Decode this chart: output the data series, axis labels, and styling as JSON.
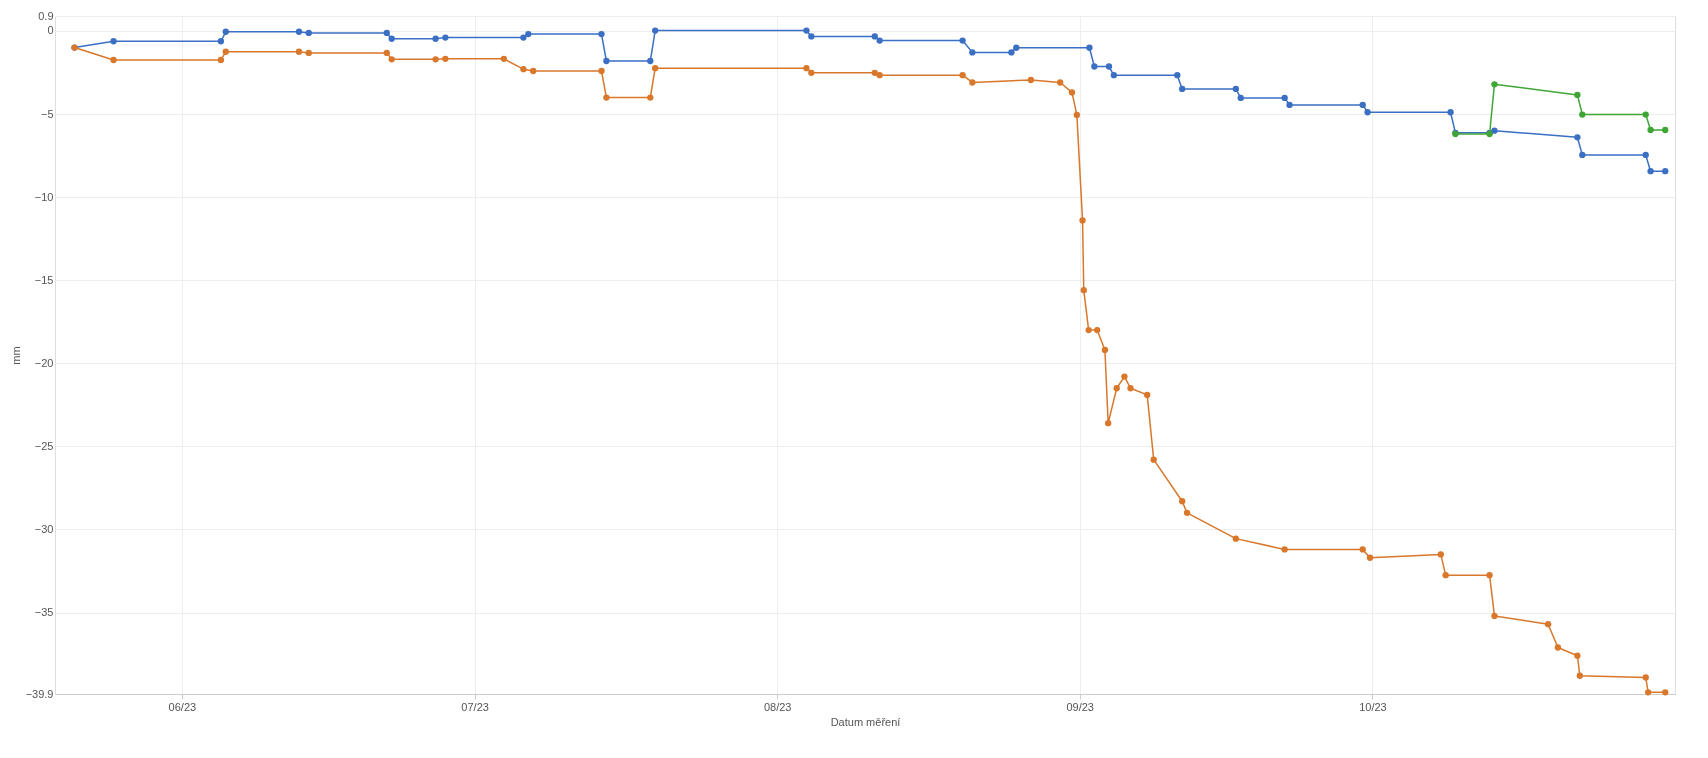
{
  "chart_data": {
    "type": "line",
    "xlabel": "Datum měření",
    "ylabel": "mm",
    "xlim": [
      "2023-05-19",
      "2023-11-01"
    ],
    "xticks": [
      {
        "value": "2023-06-01",
        "label": "06/23"
      },
      {
        "value": "2023-07-01",
        "label": "07/23"
      },
      {
        "value": "2023-08-01",
        "label": "08/23"
      },
      {
        "value": "2023-09-01",
        "label": "09/23"
      },
      {
        "value": "2023-10-01",
        "label": "10/23"
      }
    ],
    "ylim": [
      -39.9,
      0.9
    ],
    "yticks": [
      0.9,
      0,
      -5,
      -10,
      -15,
      -20,
      -25,
      -30,
      -35,
      -39.9
    ],
    "grid": true,
    "marker": "circle",
    "line_style": "solid",
    "series": [
      {
        "color": "#3a6fc4",
        "x": [
          "2023-05-21",
          "2023-05-25",
          "2023-06-05",
          "2023-06-05T12:00",
          "2023-06-13",
          "2023-06-14",
          "2023-06-22",
          "2023-06-22T12:00",
          "2023-06-27",
          "2023-06-28",
          "2023-07-06",
          "2023-07-06T12:00",
          "2023-07-14",
          "2023-07-14T12:00",
          "2023-07-19",
          "2023-07-19T12:00",
          "2023-08-04",
          "2023-08-04T12:00",
          "2023-08-11",
          "2023-08-11T12:00",
          "2023-08-20",
          "2023-08-21",
          "2023-08-25",
          "2023-08-25T12:00",
          "2023-09-02",
          "2023-09-02T12:00",
          "2023-09-04",
          "2023-09-04T12:00",
          "2023-09-11",
          "2023-09-11T12:00",
          "2023-09-17",
          "2023-09-17T12:00",
          "2023-09-22",
          "2023-09-22T12:00",
          "2023-09-30",
          "2023-09-30T12:00",
          "2023-10-09",
          "2023-10-09T12:00",
          "2023-10-13",
          "2023-10-13T12:00",
          "2023-10-22",
          "2023-10-22T12:00",
          "2023-10-29",
          "2023-10-29T12:00",
          "2023-10-31"
        ],
        "values": [
          -1.0,
          -0.62,
          -0.62,
          -0.05,
          -0.05,
          -0.12,
          -0.12,
          -0.47,
          -0.47,
          -0.4,
          -0.4,
          -0.19,
          -0.19,
          -1.81,
          -1.81,
          0.02,
          0.02,
          -0.33,
          -0.33,
          -0.58,
          -0.58,
          -1.29,
          -1.29,
          -1.01,
          -1.01,
          -2.14,
          -2.14,
          -2.66,
          -2.66,
          -3.49,
          -3.49,
          -4.03,
          -4.03,
          -4.45,
          -4.45,
          -4.89,
          -4.89,
          -6.13,
          -6.13,
          -6.0,
          -6.4,
          -7.46,
          -7.46,
          -8.44,
          -8.44
        ]
      },
      {
        "color": "#d9772b",
        "x": [
          "2023-05-21",
          "2023-05-25",
          "2023-06-05",
          "2023-06-05T12:00",
          "2023-06-13",
          "2023-06-14",
          "2023-06-22",
          "2023-06-22T12:00",
          "2023-06-27",
          "2023-06-28",
          "2023-07-04",
          "2023-07-06",
          "2023-07-07",
          "2023-07-14",
          "2023-07-14T12:00",
          "2023-07-19",
          "2023-07-19T12:00",
          "2023-08-04",
          "2023-08-04T12:00",
          "2023-08-11",
          "2023-08-11T12:00",
          "2023-08-20",
          "2023-08-21",
          "2023-08-27",
          "2023-08-30",
          "2023-08-31T05:00",
          "2023-08-31T17:00",
          "2023-09-01T07:00",
          "2023-09-01T10:00",
          "2023-09-01T22:00",
          "2023-09-02T19:00",
          "2023-09-03T14:00",
          "2023-09-03T22:00",
          "2023-09-04T19:00",
          "2023-09-05T14:00",
          "2023-09-06T05:00",
          "2023-09-07T22:00",
          "2023-09-08T14:00",
          "2023-09-11T12:00",
          "2023-09-12",
          "2023-09-17",
          "2023-09-22",
          "2023-09-30",
          "2023-09-30T18:00",
          "2023-10-08",
          "2023-10-08T12:00",
          "2023-10-13",
          "2023-10-13T12:00",
          "2023-10-19",
          "2023-10-20",
          "2023-10-22",
          "2023-10-22T06:00",
          "2023-10-29",
          "2023-10-29T06:00",
          "2023-10-31"
        ],
        "values": [
          -1.0,
          -1.75,
          -1.75,
          -1.25,
          -1.25,
          -1.32,
          -1.32,
          -1.71,
          -1.71,
          -1.68,
          -1.68,
          -2.3,
          -2.41,
          -2.41,
          -4.01,
          -4.01,
          -2.24,
          -2.24,
          -2.52,
          -2.52,
          -2.66,
          -2.66,
          -3.1,
          -2.95,
          -3.1,
          -3.7,
          -5.05,
          -11.4,
          -15.6,
          -18.0,
          -18.0,
          -19.2,
          -23.6,
          -21.5,
          -20.8,
          -21.5,
          -21.9,
          -25.8,
          -28.3,
          -29.0,
          -30.55,
          -31.2,
          -31.2,
          -31.7,
          -31.5,
          -32.75,
          -32.75,
          -35.2,
          -35.7,
          -37.1,
          -37.6,
          -38.8,
          -38.9,
          -39.8,
          -39.8
        ]
      },
      {
        "color": "#3fa535",
        "x": [
          "2023-10-09T12:00",
          "2023-10-13",
          "2023-10-13T12:00",
          "2023-10-22",
          "2023-10-22T12:00",
          "2023-10-29",
          "2023-10-29T12:00",
          "2023-10-31"
        ],
        "values": [
          -6.2,
          -6.2,
          -3.21,
          -3.85,
          -5.03,
          -5.03,
          -5.96,
          -5.96
        ]
      }
    ]
  }
}
